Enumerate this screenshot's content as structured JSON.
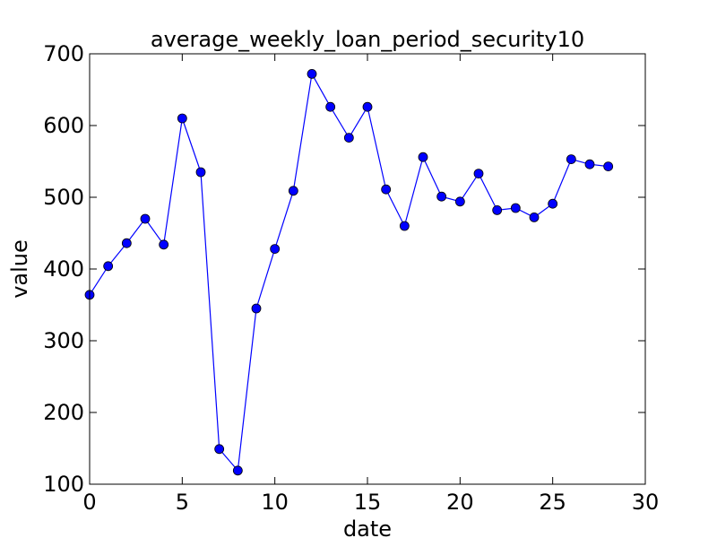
{
  "chart_data": {
    "type": "line",
    "title": "average_weekly_loan_period_security10",
    "xlabel": "date",
    "ylabel": "value",
    "xlim": [
      0,
      30
    ],
    "ylim": [
      100,
      700
    ],
    "xticks": [
      0,
      5,
      10,
      15,
      20,
      25,
      30
    ],
    "yticks": [
      100,
      200,
      300,
      400,
      500,
      600,
      700
    ],
    "grid": false,
    "series": [
      {
        "color": "#0000ff",
        "marker": "circle",
        "x": [
          0,
          1,
          2,
          3,
          4,
          5,
          6,
          7,
          8,
          9,
          10,
          11,
          12,
          13,
          14,
          15,
          16,
          17,
          18,
          19,
          20,
          21,
          22,
          23,
          24,
          25,
          26,
          27,
          28
        ],
        "values": [
          364,
          404,
          436,
          470,
          434,
          610,
          535,
          149,
          119,
          345,
          428,
          509,
          672,
          626,
          583,
          626,
          511,
          460,
          556,
          501,
          494,
          533,
          482,
          485,
          472,
          491,
          553,
          546,
          543
        ]
      }
    ]
  }
}
